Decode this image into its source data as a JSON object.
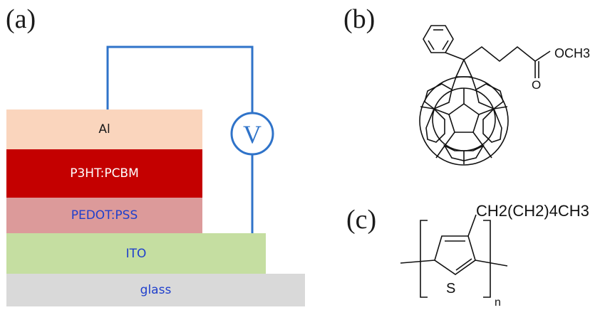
{
  "panels": {
    "a": "(a)",
    "b": "(b)",
    "c": "(c)"
  },
  "device_layers": {
    "al": "Al",
    "p3ht": "P3HT:PCBM",
    "pedot": "PEDOT:PSS",
    "ito": "ITO",
    "glass": "glass"
  },
  "voltmeter": "V",
  "pcbm": {
    "ester_group": "OCH3",
    "carbonyl_oxygen": "O"
  },
  "p3ht_structure": {
    "side_chain": "CH2(CH2)4CH3",
    "sulfur": "S",
    "repeat_subscript": "n"
  },
  "colors": {
    "al": "#fad5bd",
    "p3ht": "#c40000",
    "pedot": "#dc9a9a",
    "ito": "#c5dea1",
    "glass": "#d9d9d9",
    "wire": "#2f73c9",
    "label_blue": "#1f3fcc"
  }
}
